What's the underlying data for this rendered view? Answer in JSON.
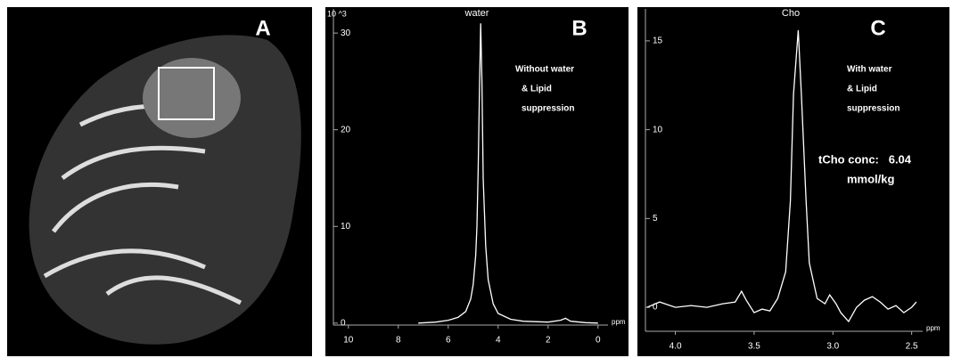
{
  "image_panel": {
    "label": "A"
  },
  "chart_data": [
    {
      "type": "line",
      "panel": "B",
      "peak_label": "water",
      "y_label": "10 ^3",
      "x_label": "ppm",
      "annotations": [
        "Without water",
        "& Lipid",
        "suppression"
      ],
      "xlim": [
        10.6,
        -0.4
      ],
      "xticks": [
        10,
        8,
        6,
        4,
        2,
        0
      ],
      "ylim": [
        -0.2,
        32.5
      ],
      "yticks": [
        0,
        10,
        20,
        30
      ],
      "series": [
        {
          "color": "#ffffff",
          "x": [
            7.2,
            6.5,
            6,
            5.6,
            5.3,
            5.1,
            5.0,
            4.9,
            4.85,
            4.8,
            4.75,
            4.7,
            4.65,
            4.6,
            4.5,
            4.4,
            4.2,
            4.0,
            3.5,
            3,
            2,
            1.5,
            1.3,
            1.1,
            0.5,
            0
          ],
          "values": [
            0,
            0.1,
            0.3,
            0.6,
            1.2,
            2.5,
            4,
            7,
            10,
            16,
            24,
            31,
            25,
            15,
            8,
            4.5,
            2,
            1,
            0.4,
            0.2,
            0.1,
            0.3,
            0.5,
            0.2,
            0.05,
            0
          ]
        }
      ]
    },
    {
      "type": "line",
      "panel": "C",
      "peak_label": "Cho",
      "x_label": "ppm",
      "annotations": [
        "With water",
        "& Lipid",
        "suppression",
        "tCho conc:   6.04",
        "mmol/kg"
      ],
      "xlim": [
        4.19,
        2.43
      ],
      "xticks": [
        {
          "value": 4,
          "label": "4.0"
        },
        {
          "value": 3.5,
          "label": "3.5"
        },
        {
          "value": 3,
          "label": "3.0"
        },
        {
          "value": 2.5,
          "label": "2.5"
        }
      ],
      "ylim": [
        -1.35,
        16.8
      ],
      "yticks": [
        0,
        5,
        10,
        15
      ],
      "series": [
        {
          "color": "#ffffff",
          "x": [
            4.18,
            4.1,
            4.0,
            3.9,
            3.8,
            3.7,
            3.62,
            3.58,
            3.55,
            3.5,
            3.45,
            3.4,
            3.35,
            3.3,
            3.27,
            3.25,
            3.22,
            3.2,
            3.17,
            3.15,
            3.1,
            3.05,
            3.02,
            2.98,
            2.95,
            2.9,
            2.85,
            2.8,
            2.75,
            2.7,
            2.65,
            2.6,
            2.55,
            2.5,
            2.47
          ],
          "values": [
            0,
            0.3,
            0,
            0.1,
            0,
            0.2,
            0.3,
            0.9,
            0.4,
            -0.3,
            -0.1,
            -0.2,
            0.5,
            2,
            6,
            12,
            15.6,
            12,
            6,
            2.5,
            0.5,
            0.2,
            0.7,
            0.2,
            -0.3,
            -0.8,
            0,
            0.4,
            0.6,
            0.3,
            -0.1,
            0.1,
            -0.3,
            0,
            0.3
          ]
        }
      ]
    }
  ]
}
